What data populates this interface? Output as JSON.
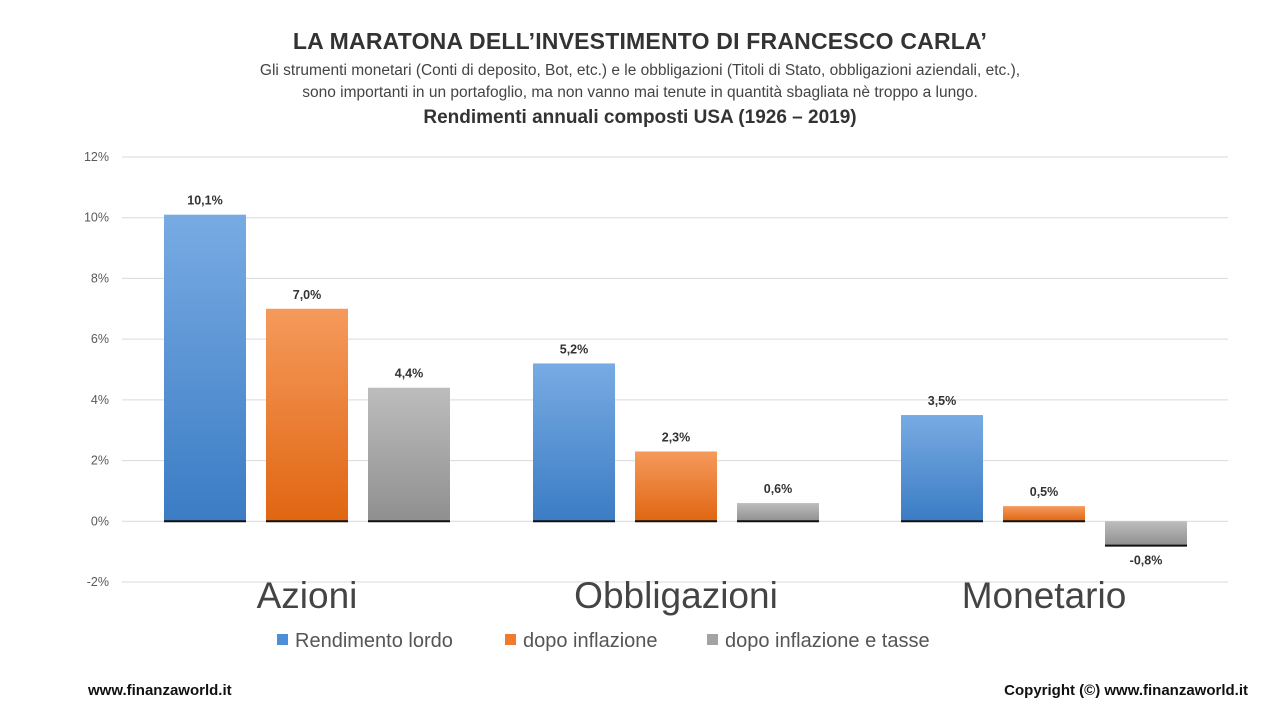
{
  "header": {
    "title": "LA MARATONA DELL’INVESTIMENTO  DI FRANCESCO CARLA’",
    "subtitle_line1": "Gli strumenti monetari (Conti di deposito, Bot, etc.) e le obbligazioni (Titoli di Stato, obbligazioni aziendali, etc.),",
    "subtitle_line2": "sono importanti in un portafoglio, ma non vanno mai tenute in quantità sbagliata nè troppo a lungo."
  },
  "chart_data": {
    "type": "bar",
    "title": "Rendimenti annuali composti USA (1926 – 2019)",
    "categories": [
      "Azioni",
      "Obbligazioni",
      "Monetario"
    ],
    "series": [
      {
        "name": "Rendimento lordo",
        "values": [
          10.1,
          5.2,
          3.5
        ],
        "labels": [
          "10,1%",
          "5,2%",
          "3,5%"
        ]
      },
      {
        "name": "dopo inflazione",
        "values": [
          7.0,
          2.3,
          0.5
        ],
        "labels": [
          "7,0%",
          "2,3%",
          "0,5%"
        ]
      },
      {
        "name": "dopo inflazione e tasse",
        "values": [
          4.4,
          0.6,
          -0.8
        ],
        "labels": [
          "4,4%",
          "0,6%",
          "-0,8%"
        ]
      }
    ],
    "ylim": [
      -2,
      12
    ],
    "yticks": [
      -2,
      0,
      2,
      4,
      6,
      8,
      10,
      12
    ],
    "ytick_labels": [
      "-2%",
      "0%",
      "2%",
      "4%",
      "6%",
      "8%",
      "10%",
      "12%"
    ],
    "grid": true,
    "legend_position": "bottom",
    "colors": [
      "#4a8fd8",
      "#f07b2c",
      "#a3a3a3"
    ],
    "colors_light": [
      "#78abe3",
      "#f59a5c",
      "#bdbdbd"
    ],
    "colors_dark": [
      "#3b7cc4",
      "#e06612",
      "#8f8f8f"
    ]
  },
  "footer": {
    "left": "www.finanzaworld.it",
    "right": "Copyright (©) www.finanzaworld.it"
  }
}
